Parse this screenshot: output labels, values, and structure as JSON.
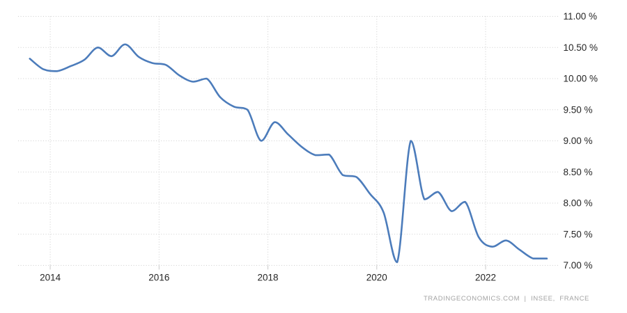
{
  "colors": {
    "background": "#ffffff",
    "line": "#4c7cbb",
    "grid": "#cdcdcd",
    "tick": "#c9c9c9",
    "label": "#262626",
    "watermark": "#a3a3a3"
  },
  "watermark": {
    "text": "TRADINGECONOMICS.COM  |  INSEE,  FRANCE"
  },
  "chart_data": {
    "type": "line",
    "grid": "dotted",
    "y_axis_side": "right",
    "xlim": [
      2013.41,
      2023.35
    ],
    "ylim": [
      7,
      11
    ],
    "x_ticks": [
      {
        "value": 2014,
        "label": "2014"
      },
      {
        "value": 2016,
        "label": "2016"
      },
      {
        "value": 2018,
        "label": "2018"
      },
      {
        "value": 2020,
        "label": "2020"
      },
      {
        "value": 2022,
        "label": "2022"
      }
    ],
    "y_ticks": [
      {
        "value": 7,
        "label": "7.00 %"
      },
      {
        "value": 7.5,
        "label": "7.50 %"
      },
      {
        "value": 8,
        "label": "8.00 %"
      },
      {
        "value": 8.5,
        "label": "8.50 %"
      },
      {
        "value": 9,
        "label": "9.00 %"
      },
      {
        "value": 9.5,
        "label": "9.50 %"
      },
      {
        "value": 10,
        "label": "10.00 %"
      },
      {
        "value": 10.5,
        "label": "10.50 %"
      },
      {
        "value": 11,
        "label": "11.00 %"
      }
    ],
    "series": [
      {
        "name": "france-unemployment-rate",
        "unit": "%",
        "points": [
          [
            2013.625,
            10.32
          ],
          [
            2013.875,
            10.15
          ],
          [
            2014.125,
            10.12
          ],
          [
            2014.375,
            10.2
          ],
          [
            2014.625,
            10.3
          ],
          [
            2014.875,
            10.5
          ],
          [
            2015.125,
            10.36
          ],
          [
            2015.375,
            10.55
          ],
          [
            2015.625,
            10.35
          ],
          [
            2015.875,
            10.25
          ],
          [
            2016.125,
            10.22
          ],
          [
            2016.375,
            10.05
          ],
          [
            2016.625,
            9.95
          ],
          [
            2016.875,
            10.0
          ],
          [
            2017.125,
            9.7
          ],
          [
            2017.375,
            9.55
          ],
          [
            2017.625,
            9.5
          ],
          [
            2017.875,
            9.0
          ],
          [
            2018.125,
            9.3
          ],
          [
            2018.375,
            9.1
          ],
          [
            2018.625,
            8.9
          ],
          [
            2018.875,
            8.77
          ],
          [
            2019.125,
            8.78
          ],
          [
            2019.375,
            8.45
          ],
          [
            2019.625,
            8.42
          ],
          [
            2019.875,
            8.15
          ],
          [
            2020.125,
            7.85
          ],
          [
            2020.375,
            7.05
          ],
          [
            2020.625,
            9.0
          ],
          [
            2020.875,
            8.06
          ],
          [
            2021.125,
            8.18
          ],
          [
            2021.375,
            7.87
          ],
          [
            2021.625,
            8.02
          ],
          [
            2021.875,
            7.45
          ],
          [
            2022.125,
            7.3
          ],
          [
            2022.375,
            7.4
          ],
          [
            2022.625,
            7.25
          ],
          [
            2022.875,
            7.11
          ],
          [
            2023.125,
            7.11
          ]
        ]
      }
    ]
  }
}
